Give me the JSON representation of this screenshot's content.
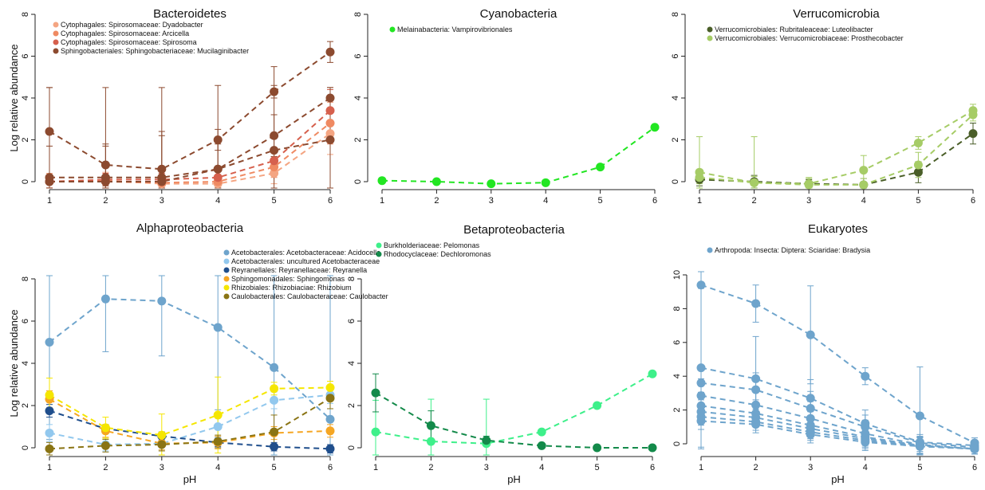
{
  "figure": {
    "ylabel": "Log relative abundance",
    "xlabel": "pH"
  },
  "chart_data": [
    {
      "type": "line",
      "title": "Bacteroidetes",
      "x": [
        1,
        2,
        3,
        4,
        5,
        6
      ],
      "ylim": [
        0,
        8
      ],
      "yticks": [
        0,
        2,
        4,
        6,
        8
      ],
      "show_xlabel": false,
      "show_ylabel": true,
      "legend": "top-left",
      "series": [
        {
          "name": "Cytophagales: Spirosomaceae: Dyadobacter",
          "color": "#f4a582",
          "values": [
            0.0,
            0.05,
            -0.1,
            -0.1,
            0.4,
            2.3
          ],
          "error": [
            0.4,
            0.4,
            0.3,
            0.4,
            0.5,
            1.0
          ]
        },
        {
          "name": "Cytophagales: Spirosomaceae: Arcicella",
          "color": "#ef8a62",
          "values": [
            0.0,
            0.0,
            -0.05,
            0.0,
            0.7,
            2.8
          ],
          "error": [
            0.3,
            0.3,
            0.3,
            0.3,
            0.5,
            1.0
          ]
        },
        {
          "name": "Cytophagales: Spirosomaceae: Spirosoma",
          "color": "#d6604d",
          "values": [
            0.0,
            0.1,
            0.1,
            0.2,
            1.0,
            3.4
          ],
          "error": [
            0.3,
            0.3,
            0.3,
            0.3,
            0.5,
            1.0
          ]
        },
        {
          "name": "Sphingobacteriales: Sphingobacteriaceae: Mucilaginibacter",
          "color": "#8c4a2f",
          "values": [
            2.4,
            0.8,
            0.6,
            2.0,
            4.3,
            6.2
          ],
          "error": [
            2.1,
            1.0,
            1.8,
            0.5,
            0.3,
            0.5
          ]
        },
        {
          "name": "",
          "color": "#8c4a2f",
          "values": [
            0.2,
            0.2,
            0.2,
            0.6,
            2.2,
            4.0
          ],
          "error": [
            1.5,
            1.5,
            2.0,
            1.2,
            1.0,
            0.5
          ]
        },
        {
          "name": "",
          "color": "#8c4a2f",
          "values": [
            0.0,
            0.0,
            0.0,
            0.6,
            1.5,
            2.0
          ],
          "error": [
            4.5,
            4.5,
            4.5,
            4.0,
            4.0,
            2.5
          ]
        }
      ]
    },
    {
      "type": "line",
      "title": "Cyanobacteria",
      "x": [
        1,
        2,
        3,
        4,
        5,
        6
      ],
      "ylim": [
        0,
        8
      ],
      "yticks": [
        0,
        2,
        4,
        6,
        8
      ],
      "show_xlabel": false,
      "show_ylabel": false,
      "legend": "top-left",
      "series": [
        {
          "name": "Melainabacteria: Vampirovibrionales",
          "color": "#22e622",
          "values": [
            0.05,
            0.0,
            -0.1,
            -0.05,
            0.7,
            2.6
          ],
          "error": [
            0,
            0,
            0,
            0,
            0,
            0
          ]
        }
      ]
    },
    {
      "type": "line",
      "title": "Verrucomicrobia",
      "x": [
        1,
        2,
        3,
        4,
        5,
        6
      ],
      "ylim": [
        0,
        8
      ],
      "yticks": [
        0,
        2,
        4,
        6,
        8
      ],
      "show_xlabel": false,
      "show_ylabel": false,
      "legend": "top-left",
      "series": [
        {
          "name": "Verrucomicrobiales: Rubritaleaceae: Luteolibacter",
          "color": "#4a5e28",
          "values": [
            0.1,
            0.0,
            -0.1,
            -0.15,
            0.45,
            2.3
          ],
          "error": [
            0.3,
            0.3,
            0.2,
            0.3,
            0.5,
            0.5
          ]
        },
        {
          "name": "Verrucomicrobiales: Verrucomicrobiaceae: Prosthecobacter",
          "color": "#a6cc66",
          "values": [
            0.45,
            -0.05,
            -0.1,
            0.55,
            1.85,
            3.4
          ],
          "error": [
            1.7,
            2.2,
            0.3,
            0.7,
            0.3,
            0.3
          ]
        },
        {
          "name": "",
          "color": "#a6cc66",
          "values": [
            0.2,
            -0.05,
            -0.15,
            -0.15,
            0.8,
            3.2
          ],
          "error": [
            0.3,
            0.3,
            0.3,
            0.3,
            0.6,
            0.3
          ]
        }
      ]
    },
    {
      "type": "line",
      "title": "Alphaproteobacteria",
      "x": [
        1,
        2,
        3,
        4,
        5,
        6
      ],
      "ylim": [
        0,
        8
      ],
      "yticks": [
        0,
        2,
        4,
        6,
        8
      ],
      "show_xlabel": true,
      "show_ylabel": true,
      "legend": "top-right",
      "series": [
        {
          "name": "Acetobacterales: Acetobacteraceae: Acidocella",
          "color": "#6ea4cc",
          "values": [
            5.0,
            7.05,
            6.95,
            5.7,
            3.8,
            1.35
          ],
          "error": [
            4.6,
            2.5,
            2.6,
            3.9,
            5.8,
            8.3
          ]
        },
        {
          "name": "Acetobacterales: uncultured Acetobacteraceae",
          "color": "#92c8ee",
          "values": [
            0.7,
            0.15,
            0.2,
            1.0,
            2.25,
            2.5
          ],
          "error": [
            0.4,
            0.3,
            0.3,
            0.5,
            0.4,
            0.4
          ]
        },
        {
          "name": "Reyranellales: Reyranellaceae: Reyranella",
          "color": "#1f4e8c",
          "values": [
            1.75,
            0.9,
            0.55,
            0.25,
            0.05,
            -0.05
          ],
          "error": [
            0.3,
            0.2,
            0.2,
            0.2,
            0.2,
            0.2
          ]
        },
        {
          "name": "Sphingomonadales: Sphingomonas",
          "color": "#f5a623",
          "values": [
            2.3,
            0.8,
            0.2,
            0.25,
            0.7,
            0.8
          ],
          "error": [
            0.4,
            0.3,
            0.3,
            0.3,
            0.3,
            0.3
          ]
        },
        {
          "name": "Rhizobiales: Rhizobiaciae: Rhizobium",
          "color": "#f5e600",
          "values": [
            2.5,
            0.95,
            0.6,
            1.55,
            2.8,
            2.85
          ],
          "error": [
            0.8,
            0.5,
            1.0,
            1.8,
            0.3,
            0.3
          ]
        },
        {
          "name": "Caulobacterales: Caulobacteraceae: Caulobacter",
          "color": "#8a7414",
          "values": [
            -0.05,
            0.1,
            0.15,
            0.3,
            0.75,
            2.35
          ],
          "error": [
            0.3,
            0.3,
            0.3,
            0.3,
            0.8,
            0.5
          ]
        }
      ]
    },
    {
      "type": "line",
      "title": "Betaproteobacteria",
      "x": [
        1,
        2,
        3,
        4,
        5,
        6
      ],
      "ylim": [
        0,
        8
      ],
      "yticks": [
        0,
        2,
        4,
        6,
        8
      ],
      "show_xlabel": true,
      "show_ylabel": false,
      "legend": "top-left",
      "series": [
        {
          "name": "Burkholderiaceae: Pelomonas",
          "color": "#3ef08a",
          "values": [
            0.75,
            0.3,
            0.2,
            0.75,
            2.0,
            3.5
          ],
          "error": [
            1.5,
            2.0,
            2.1,
            0,
            0,
            0
          ]
        },
        {
          "name": "Rhodocyclaceae: Dechloromonas",
          "color": "#138a4a",
          "values": [
            2.6,
            1.05,
            0.35,
            0.1,
            0.0,
            0.0
          ],
          "error": [
            0.9,
            0.7,
            0.2,
            0,
            0,
            0
          ]
        }
      ]
    },
    {
      "type": "line",
      "title": "Eukaryotes",
      "x": [
        1,
        2,
        3,
        4,
        5,
        6
      ],
      "ylim": [
        0,
        10
      ],
      "yticks": [
        0,
        2,
        4,
        6,
        8,
        10
      ],
      "show_xlabel": true,
      "show_ylabel": false,
      "legend": "top-center",
      "series": [
        {
          "name": "Arthropoda: Insecta: Diptera: Sciaridae: Bradysia",
          "color": "#6ea4cc",
          "values": [
            9.4,
            8.3,
            6.45,
            4.0,
            1.65,
            0.05
          ],
          "error": [
            9.7,
            1.1,
            2.9,
            0.5,
            2.9,
            0.3
          ]
        },
        {
          "name": "",
          "color": "#6ea4cc",
          "values": [
            4.5,
            3.85,
            2.7,
            1.2,
            0.1,
            -0.1
          ],
          "error": [
            4.7,
            2.5,
            1.1,
            0.5,
            0.3,
            0.3
          ]
        },
        {
          "name": "",
          "color": "#6ea4cc",
          "values": [
            3.6,
            3.2,
            2.1,
            1.0,
            0.05,
            -0.2
          ],
          "error": [
            1.0,
            1.0,
            1.0,
            1.0,
            0.5,
            0.3
          ]
        },
        {
          "name": "",
          "color": "#6ea4cc",
          "values": [
            2.85,
            2.3,
            1.5,
            0.6,
            -0.05,
            -0.3
          ],
          "error": [
            1.0,
            1.0,
            1.0,
            0.8,
            0.5,
            0.3
          ]
        },
        {
          "name": "",
          "color": "#6ea4cc",
          "values": [
            2.25,
            1.8,
            1.1,
            0.4,
            -0.1,
            -0.3
          ],
          "error": [
            0.8,
            0.8,
            0.8,
            0.5,
            0.5,
            0.3
          ]
        },
        {
          "name": "",
          "color": "#6ea4cc",
          "values": [
            1.9,
            1.55,
            0.9,
            0.3,
            -0.1,
            -0.3
          ],
          "error": [
            0.5,
            0.5,
            0.5,
            0.5,
            0.5,
            0.3
          ]
        },
        {
          "name": "",
          "color": "#6ea4cc",
          "values": [
            1.6,
            1.3,
            0.7,
            0.2,
            -0.15,
            -0.3
          ],
          "error": [
            0.5,
            0.5,
            0.5,
            0.5,
            0.5,
            0.3
          ]
        },
        {
          "name": "",
          "color": "#6ea4cc",
          "values": [
            1.35,
            1.15,
            0.55,
            0.1,
            -0.15,
            -0.3
          ],
          "error": [
            0.5,
            0.5,
            0.5,
            0.5,
            0.5,
            0.3
          ]
        }
      ]
    }
  ]
}
